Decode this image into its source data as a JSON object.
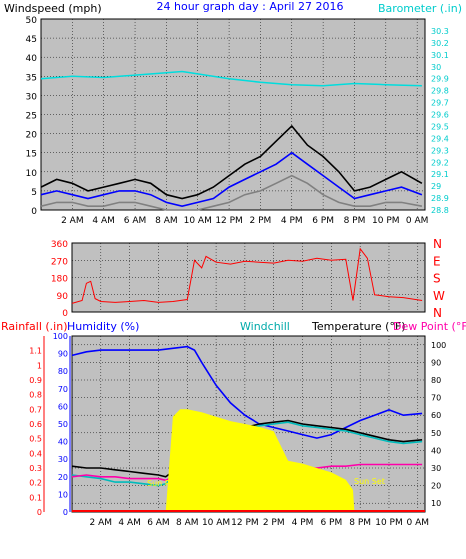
{
  "chart_data": [
    {
      "type": "line",
      "title": "24 hour graph day : April 27 2016",
      "left_axis_label": "Windspeed (mph)",
      "right_axis_label": "Barometer (.in)",
      "x_tick_labels": [
        "2 AM",
        "4 AM",
        "6 AM",
        "8 AM",
        "10 AM",
        "12 PM",
        "2 PM",
        "4 PM",
        "6 PM",
        "8 PM",
        "10 PM",
        "0 AM"
      ],
      "x_ticks": [
        2,
        4,
        6,
        8,
        10,
        12,
        14,
        16,
        18,
        20,
        22,
        24
      ],
      "xlim": [
        0,
        24.5
      ],
      "ylim_left": [
        0,
        50
      ],
      "yticks_left": [
        0,
        5,
        10,
        15,
        20,
        25,
        30,
        35,
        40,
        45,
        50
      ],
      "ylim_right": [
        28.8,
        30.4
      ],
      "yticks_right_labels": [
        "28.8",
        "28.9",
        "29",
        "29.1",
        "29.2",
        "29.3",
        "29.4",
        "29.5",
        "29.6",
        "29.7",
        "29.8",
        "29.9",
        "30",
        "30.1",
        "30.2",
        "30.3"
      ],
      "series": [
        {
          "name": "gust",
          "axis": "left",
          "color": "#000000",
          "x": [
            0,
            1,
            2,
            3,
            4,
            5,
            6,
            7,
            8,
            9,
            10,
            11,
            12,
            13,
            14,
            15,
            16,
            17,
            18,
            19,
            20,
            21,
            22,
            23,
            24.3
          ],
          "y": [
            6,
            8,
            7,
            5,
            6,
            7,
            8,
            7,
            4,
            3,
            4,
            6,
            9,
            12,
            14,
            18,
            22,
            17,
            14,
            10,
            5,
            6,
            8,
            10,
            7
          ]
        },
        {
          "name": "average",
          "axis": "left",
          "color": "#0000ff",
          "x": [
            0,
            1,
            2,
            3,
            4,
            5,
            6,
            7,
            8,
            9,
            10,
            11,
            12,
            13,
            14,
            15,
            16,
            17,
            18,
            19,
            20,
            21,
            22,
            23,
            24.3
          ],
          "y": [
            4,
            5,
            4,
            3,
            4,
            5,
            5,
            4,
            2,
            1,
            2,
            3,
            6,
            8,
            10,
            12,
            15,
            12,
            9,
            6,
            3,
            4,
            5,
            6,
            4
          ]
        },
        {
          "name": "minimum",
          "axis": "left",
          "color": "#808080",
          "x": [
            0,
            1,
            2,
            3,
            4,
            5,
            6,
            7,
            8,
            9,
            10,
            11,
            12,
            13,
            14,
            15,
            16,
            17,
            18,
            19,
            20,
            21,
            22,
            23,
            24.3
          ],
          "y": [
            1,
            2,
            2,
            1,
            1,
            2,
            2,
            1,
            0,
            0,
            0,
            1,
            2,
            4,
            5,
            7,
            9,
            7,
            4,
            2,
            1,
            1,
            2,
            2,
            1
          ]
        },
        {
          "name": "barometer",
          "axis": "right",
          "color": "#00dddd",
          "x": [
            0,
            2,
            4,
            6,
            8,
            9,
            10,
            12,
            14,
            16,
            18,
            20,
            22,
            24.3
          ],
          "y": [
            29.9,
            29.92,
            29.91,
            29.93,
            29.95,
            29.96,
            29.94,
            29.9,
            29.87,
            29.85,
            29.84,
            29.86,
            29.85,
            29.84
          ]
        }
      ]
    },
    {
      "type": "scatter",
      "title": "",
      "xlabel": "",
      "ylabel": "",
      "x_ticks": [
        2,
        4,
        6,
        8,
        10,
        12,
        14,
        16,
        18,
        20,
        22,
        24
      ],
      "xlim": [
        0,
        24.5
      ],
      "ylim": [
        0,
        360
      ],
      "yticks": [
        0,
        90,
        180,
        270,
        360
      ],
      "right_labels": [
        "N",
        "W",
        "S",
        "E",
        "N"
      ],
      "series": [
        {
          "name": "direction",
          "color": "#ff0000",
          "x": [
            0,
            0.7,
            1,
            1.3,
            1.6,
            2,
            3,
            4,
            5,
            6,
            7,
            8,
            8.5,
            9,
            9.3,
            10,
            11,
            12,
            13,
            14,
            15,
            16,
            17,
            18,
            19,
            19.5,
            20,
            20.5,
            21,
            22,
            23,
            24.3
          ],
          "y": [
            45,
            60,
            150,
            160,
            70,
            55,
            50,
            55,
            60,
            50,
            55,
            65,
            270,
            230,
            290,
            260,
            250,
            265,
            260,
            255,
            270,
            265,
            280,
            270,
            275,
            60,
            330,
            280,
            90,
            80,
            75,
            60
          ]
        }
      ]
    },
    {
      "type": "line",
      "title": "",
      "top_labels": [
        "Rainfall (.in)",
        "Humidity (%)",
        "Windchill",
        "Temperature (°F)",
        "Dew Point (°F)"
      ],
      "annotations": [
        "Sun Rise",
        "Sun Set"
      ],
      "x_ticks": [
        2,
        4,
        6,
        8,
        10,
        12,
        14,
        16,
        18,
        20,
        22,
        24
      ],
      "x_tick_labels": [
        "2 AM",
        "4 AM",
        "6 AM",
        "8 AM",
        "10 AM",
        "12 PM",
        "2 PM",
        "4 PM",
        "6 PM",
        "8 PM",
        "10 PM",
        "0 AM"
      ],
      "xlim": [
        0,
        24.5
      ],
      "ylim_rain": [
        0,
        1.2
      ],
      "yticks_rain": [
        0,
        0.1,
        0.2,
        0.3,
        0.4,
        0.5,
        0.6,
        0.7,
        0.8,
        0.9,
        1,
        1.1
      ],
      "ylim_humidity": [
        0,
        100
      ],
      "yticks_humidity": [
        0,
        10,
        20,
        30,
        40,
        50,
        60,
        70,
        80,
        90,
        100
      ],
      "ylim_temp": [
        5,
        105
      ],
      "yticks_temp": [
        10,
        20,
        30,
        40,
        50,
        60,
        70,
        80,
        90,
        100
      ],
      "series": [
        {
          "name": "Humidity (%)",
          "axis": "humidity",
          "color": "#0000ff",
          "x": [
            0,
            1,
            2,
            3,
            4,
            5,
            6,
            7,
            8,
            8.5,
            9,
            10,
            11,
            12,
            13,
            14,
            15,
            16,
            17,
            18,
            19,
            20,
            21,
            22,
            23,
            24.3
          ],
          "y": [
            89,
            91,
            92,
            92,
            92,
            92,
            92,
            93,
            94,
            92,
            85,
            72,
            62,
            55,
            50,
            48,
            46,
            44,
            42,
            44,
            48,
            52,
            55,
            58,
            55,
            56
          ]
        },
        {
          "name": "Temperature (°F)",
          "axis": "temp",
          "color": "#000000",
          "x": [
            0,
            1,
            2,
            3,
            4,
            5,
            6,
            6.5,
            7,
            8,
            9,
            10,
            11,
            12,
            13,
            14,
            15,
            16,
            17,
            18,
            19,
            20,
            21,
            22,
            23,
            24.3
          ],
          "y": [
            31,
            30,
            30,
            29,
            28,
            27,
            26,
            25,
            28,
            33,
            38,
            44,
            50,
            53,
            55,
            56,
            57,
            55,
            54,
            53,
            52,
            50,
            48,
            46,
            45,
            46
          ]
        },
        {
          "name": "Windchill",
          "axis": "temp",
          "color": "#00bbbb",
          "x": [
            0,
            1,
            2,
            3,
            4,
            5,
            6,
            6.5,
            7,
            8,
            9,
            10,
            11,
            12,
            13,
            14,
            15,
            16,
            17,
            18,
            19,
            20,
            21,
            22,
            23,
            24.3
          ],
          "y": [
            26,
            25,
            24,
            22,
            22,
            21,
            20,
            21,
            25,
            30,
            36,
            42,
            48,
            52,
            54,
            55,
            56,
            54,
            53,
            52,
            51,
            49,
            47,
            45,
            44,
            45
          ]
        },
        {
          "name": "Dew Point (°F)",
          "axis": "temp",
          "color": "#ff00aa",
          "x": [
            0,
            1,
            2,
            3,
            4,
            5,
            6,
            6.5,
            7,
            8,
            9,
            10,
            11,
            12,
            13,
            14,
            15,
            16,
            17,
            18,
            19,
            20,
            21,
            22,
            23,
            24.3
          ],
          "y": [
            25,
            26,
            25,
            25,
            24,
            24,
            24,
            23,
            25,
            28,
            30,
            31,
            32,
            33,
            32,
            31,
            30,
            30,
            30,
            31,
            31,
            32,
            32,
            32,
            32,
            32
          ]
        },
        {
          "name": "Rainfall (.in)",
          "axis": "rain",
          "type": "area",
          "color": "#ffff00",
          "x": [
            6.5,
            7,
            7.5,
            8,
            9,
            10,
            11,
            12,
            13,
            14,
            15,
            16,
            17,
            18,
            19,
            19.5,
            19.6
          ],
          "y": [
            0,
            0.65,
            0.7,
            0.7,
            0.68,
            0.65,
            0.62,
            0.6,
            0.58,
            0.55,
            0.35,
            0.33,
            0.3,
            0.27,
            0.22,
            0.15,
            0
          ]
        }
      ]
    }
  ]
}
